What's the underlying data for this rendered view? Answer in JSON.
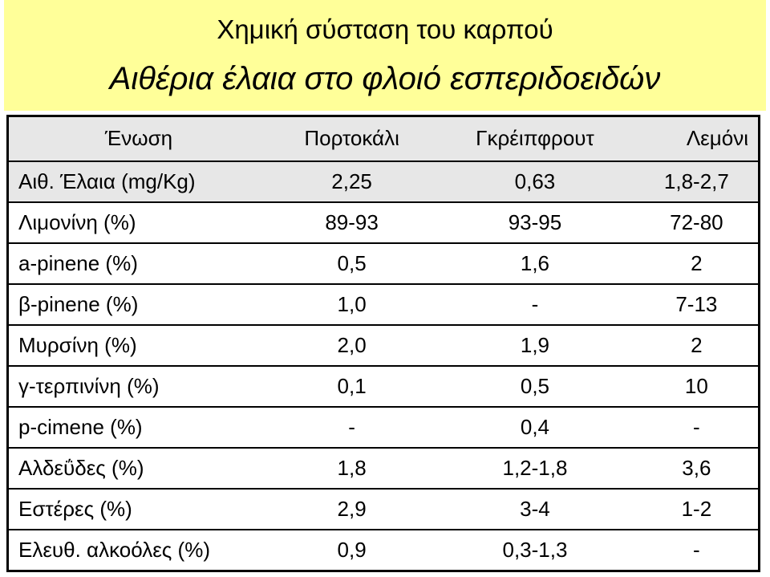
{
  "header": {
    "title": "Χημική σύσταση του καρπού",
    "subtitle": "Αιθέρια έλαια στο φλοιό εσπεριδοειδών"
  },
  "table": {
    "columns": [
      "Ένωση",
      "Πορτοκάλι",
      "Γκρέιπφρουτ",
      "Λεμόνι"
    ],
    "rows": [
      [
        "Αιθ. Έλαια (mg/Kg)",
        "2,25",
        "0,63",
        "1,8-2,7"
      ],
      [
        "Λιμονίνη (%)",
        "89-93",
        "93-95",
        "72-80"
      ],
      [
        "a-pinene (%)",
        "0,5",
        "1,6",
        "2"
      ],
      [
        "β-pinene (%)",
        "1,0",
        "-",
        "7-13"
      ],
      [
        "Μυρσίνη (%)",
        "2,0",
        "1,9",
        "2"
      ],
      [
        "γ-τερπινίνη (%)",
        "0,1",
        "0,5",
        "10"
      ],
      [
        "p-cimene (%)",
        "-",
        "0,4",
        "-"
      ],
      [
        "Αλδεΰδες (%)",
        "1,8",
        "1,2-1,8",
        "3,6"
      ],
      [
        "Εστέρες  (%)",
        "2,9",
        "3-4",
        "1-2"
      ],
      [
        "Ελευθ. αλκοόλες (%)",
        "0,9",
        "0,3-1,3",
        "-"
      ]
    ]
  }
}
